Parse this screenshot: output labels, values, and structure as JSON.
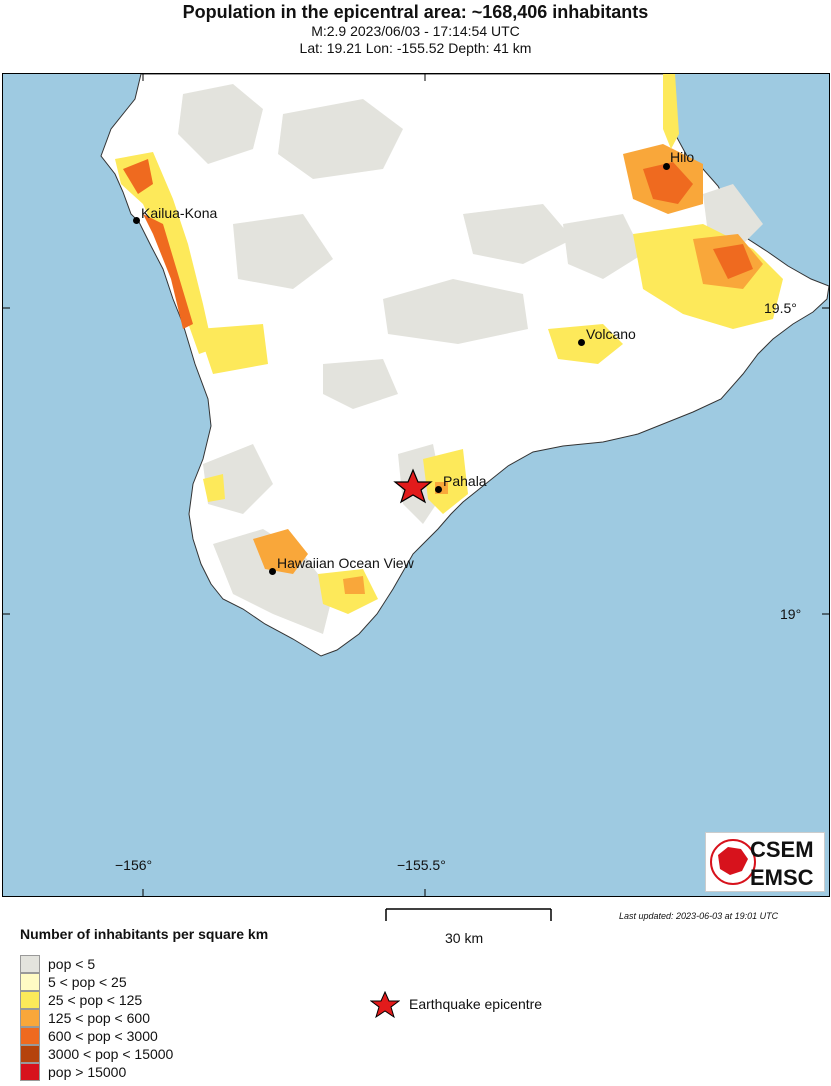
{
  "header": {
    "title": "Population in the epicentral area: ~168,406 inhabitants",
    "event_line": "M:2.9 2023/06/03 - 17:14:54 UTC",
    "location_line": "Lat: 19.21 Lon: -155.52 Depth: 41 km"
  },
  "map": {
    "ocean_color": "#9ecae1",
    "land_color": "#ffffff",
    "epicentre": {
      "lat": 19.21,
      "lon": -155.52,
      "marker": "red-star-icon"
    },
    "cities": [
      {
        "name": "Hilo"
      },
      {
        "name": "Kailua-Kona"
      },
      {
        "name": "Volcano"
      },
      {
        "name": "Pahala"
      },
      {
        "name": "Hawaiian Ocean View"
      }
    ],
    "lon_ticks": [
      "−156°",
      "−155.5°"
    ],
    "lat_ticks": [
      "19.5°",
      "19°"
    ]
  },
  "scale_bar": {
    "label": "30 km"
  },
  "last_updated": "Last updated: 2023-06-03 at 19:01 UTC",
  "logo": {
    "top": "CSEM",
    "bottom": "EMSC"
  },
  "legend": {
    "title": "Number of inhabitants per square km",
    "items": [
      {
        "label": "pop < 5",
        "color": "#e3e3dd"
      },
      {
        "label": "5 < pop < 25",
        "color": "#fffbc4"
      },
      {
        "label": "25 < pop < 125",
        "color": "#fde95a"
      },
      {
        "label": "125 < pop < 600",
        "color": "#f9a73a"
      },
      {
        "label": "600 < pop < 3000",
        "color": "#ef6a1f"
      },
      {
        "label": "3000 < pop < 15000",
        "color": "#b5430c"
      },
      {
        "label": "pop > 15000",
        "color": "#d7121c"
      }
    ],
    "epicentre_label": "Earthquake epicentre"
  }
}
